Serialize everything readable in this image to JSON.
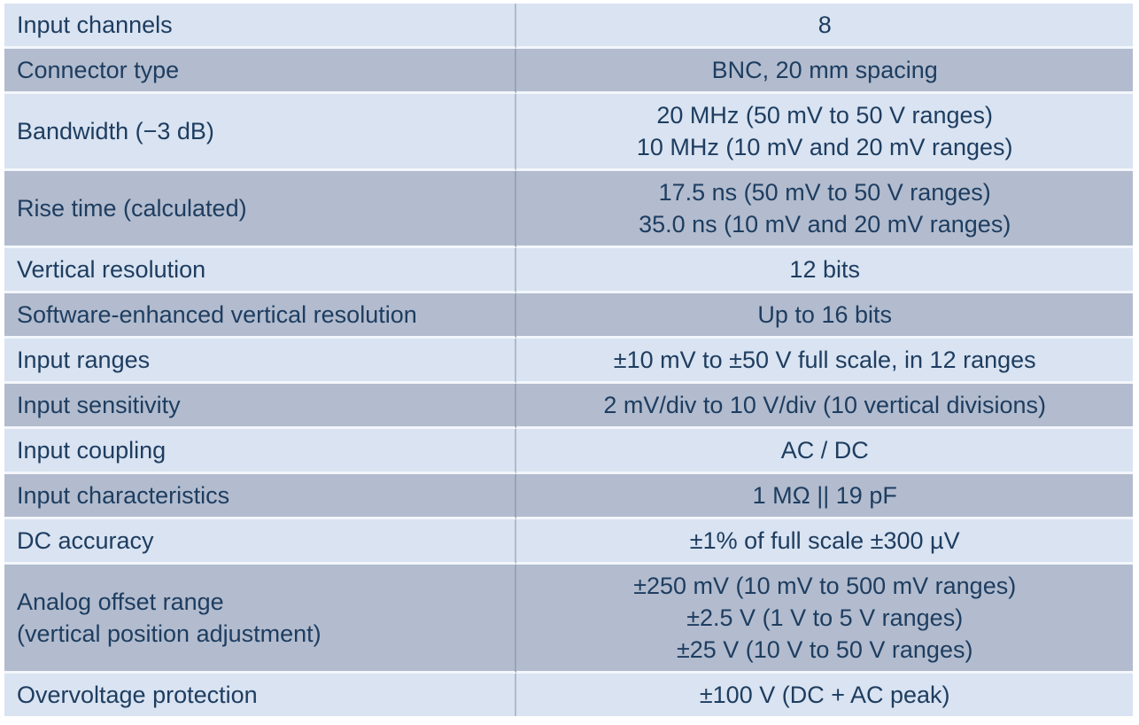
{
  "colors": {
    "row_light": "#d9e3f1",
    "row_dark": "#b2bcce",
    "text": "#1e3d60",
    "background": "#ffffff"
  },
  "table": {
    "description": "Oscilloscope vertical input specifications",
    "columns": [
      "parameter",
      "value"
    ],
    "rows": [
      {
        "shade": "light",
        "label_lines": [
          "Input channels"
        ],
        "value_lines": [
          "8"
        ]
      },
      {
        "shade": "dark",
        "label_lines": [
          "Connector type"
        ],
        "value_lines": [
          "BNC, 20 mm spacing"
        ]
      },
      {
        "shade": "light",
        "label_lines": [
          "Bandwidth (−3 dB)"
        ],
        "value_lines": [
          "20 MHz (50 mV to 50 V ranges)",
          "10 MHz (10 mV and 20 mV ranges)"
        ]
      },
      {
        "shade": "dark",
        "label_lines": [
          "Rise time (calculated)"
        ],
        "value_lines": [
          "17.5 ns (50 mV to 50 V ranges)",
          "35.0 ns (10 mV and 20 mV ranges)"
        ]
      },
      {
        "shade": "light",
        "label_lines": [
          "Vertical resolution"
        ],
        "value_lines": [
          "12 bits"
        ]
      },
      {
        "shade": "dark",
        "label_lines": [
          "Software-enhanced vertical resolution"
        ],
        "value_lines": [
          "Up to 16 bits"
        ]
      },
      {
        "shade": "light",
        "label_lines": [
          "Input ranges"
        ],
        "value_lines": [
          "±10 mV to ±50 V full scale, in 12 ranges"
        ]
      },
      {
        "shade": "dark",
        "label_lines": [
          "Input sensitivity"
        ],
        "value_lines": [
          "2 mV/div to 10 V/div (10 vertical divisions)"
        ]
      },
      {
        "shade": "light",
        "label_lines": [
          "Input coupling"
        ],
        "value_lines": [
          "AC / DC"
        ]
      },
      {
        "shade": "dark",
        "label_lines": [
          "Input characteristics"
        ],
        "value_lines": [
          "1 MΩ || 19 pF"
        ]
      },
      {
        "shade": "light",
        "label_lines": [
          "DC accuracy"
        ],
        "value_lines": [
          "±1% of full scale ±300 µV"
        ]
      },
      {
        "shade": "dark",
        "label_lines": [
          "Analog offset range",
          "(vertical position adjustment)"
        ],
        "value_lines": [
          "±250 mV (10 mV to 500 mV ranges)",
          "±2.5 V (1 V to 5 V ranges)",
          "±25 V (10 V to 50 V ranges)"
        ]
      },
      {
        "shade": "light",
        "label_lines": [
          "Overvoltage protection"
        ],
        "value_lines": [
          "±100 V (DC + AC peak)"
        ]
      }
    ]
  }
}
